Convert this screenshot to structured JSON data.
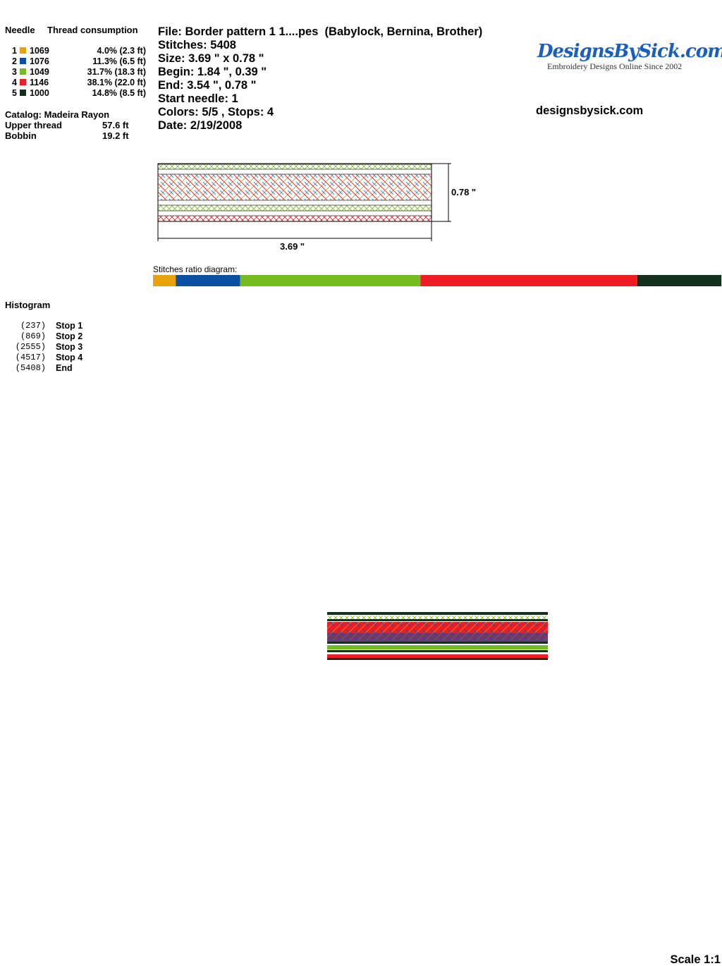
{
  "left": {
    "needle_heading": "Needle",
    "thread_heading": "Thread consumption",
    "threads": [
      {
        "needle": "1",
        "color": "#e8a20c",
        "code": "1069",
        "consumption": "4.0% (2.3 ft)"
      },
      {
        "needle": "2",
        "color": "#0a4fa3",
        "code": "1076",
        "consumption": "11.3% (6.5 ft)"
      },
      {
        "needle": "3",
        "color": "#74bc1f",
        "code": "1049",
        "consumption": "31.7% (18.3 ft)"
      },
      {
        "needle": "4",
        "color": "#ee1c24",
        "code": "1146",
        "consumption": "38.1% (22.0 ft)"
      },
      {
        "needle": "5",
        "color": "#15301c",
        "code": "1000",
        "consumption": "14.8% (8.5 ft)"
      }
    ],
    "catalog": "Catalog: Madeira Rayon",
    "upper_thread": {
      "label": "Upper thread",
      "value": "57.6 ft"
    },
    "bobbin": {
      "label": "Bobbin",
      "value": "19.2 ft"
    },
    "histogram_title": "Histogram",
    "histogram": [
      [
        "(237)",
        "Stop 1"
      ],
      [
        "(869)",
        "Stop 2"
      ],
      [
        "(2555)",
        "Stop 3"
      ],
      [
        "(4517)",
        "Stop 4"
      ],
      [
        "(5408)",
        "End"
      ]
    ]
  },
  "info": [
    "File: Border pattern 1 1....pes  (Babylock, Bernina, Brother)",
    "Stitches: 5408",
    "Size: 3.69 \" x 0.78 \"",
    "Begin: 1.84 \", 0.39 \"",
    "End: 3.54 \", 0.78 \"",
    "Start needle: 1",
    "Colors: 5/5 , Stops: 4",
    "Date: 2/19/2008"
  ],
  "logo": {
    "name": "DesignsBySick.com",
    "tagline": "Embroidery Designs Online Since 2002"
  },
  "website": "designsbysick.com",
  "dimensions": {
    "height": "0.78 \"",
    "width": "3.69 \""
  },
  "ratio_title": "Stitches ratio diagram:",
  "scale": "Scale 1:1"
}
